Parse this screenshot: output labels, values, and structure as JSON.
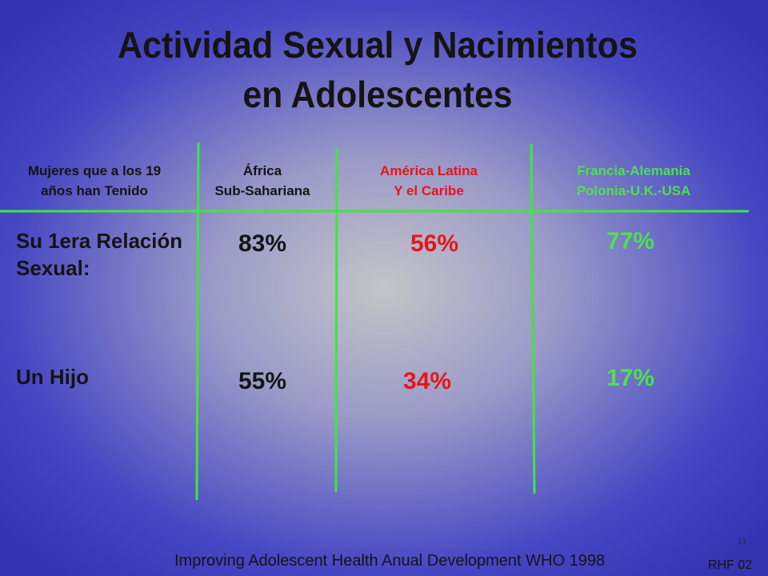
{
  "title": [
    "Actividad Sexual y Nacimientos",
    "en Adolescentes"
  ],
  "table": {
    "header": [
      [
        "Mujeres que  a los 19",
        "años han Tenido"
      ],
      [
        "África",
        "Sub-Sahariana"
      ],
      [
        "América Latina",
        "Y el Caribe"
      ],
      [
        "Francia-Alemania",
        "Polonia-U.K.-USA"
      ]
    ],
    "rows": [
      [
        [
          "Su 1era Relación",
          "Sexual:"
        ],
        "83%",
        "56%",
        "77%"
      ],
      [
        [
          "Un Hijo"
        ],
        "55%",
        "34%",
        "17%"
      ]
    ]
  },
  "footer": {
    "slide_number": "13",
    "source": "Improving Adolescent Health Anual Development WHO 1998",
    "code": "RHF 02"
  }
}
